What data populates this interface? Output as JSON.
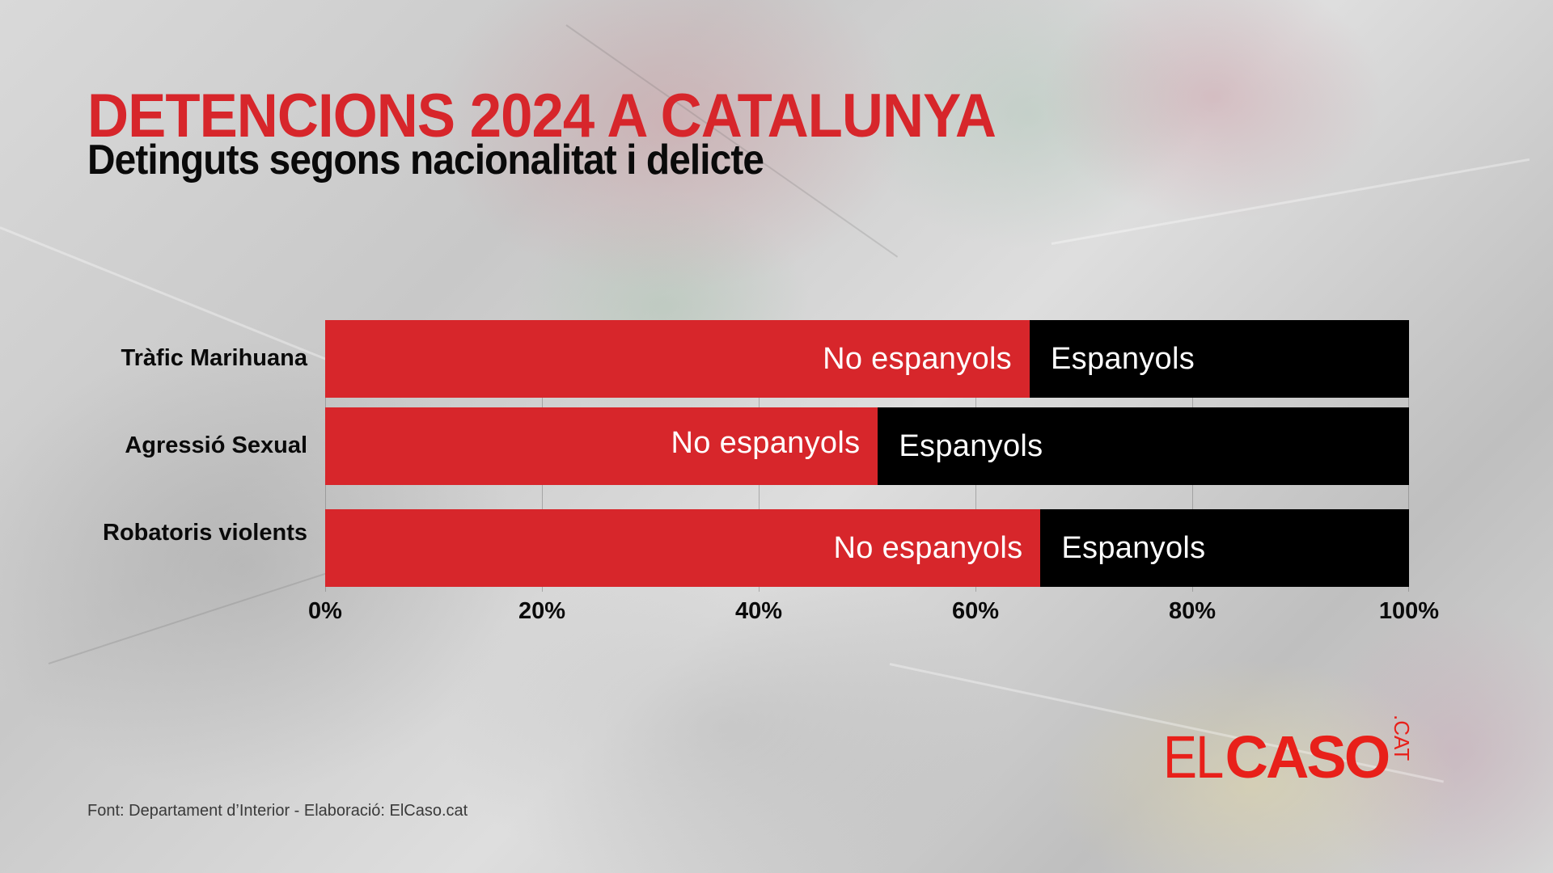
{
  "header": {
    "title": "DETENCIONS 2024 A CATALUNYA",
    "subtitle": "Detinguts segons nacionalitat i delicte"
  },
  "footer": {
    "source": "Font: Departament d’Interior - Elaboració: ElCaso.cat"
  },
  "logo": {
    "part1": "EL",
    "part2": "CASO",
    "part3": ".CAT"
  },
  "colors": {
    "accent_red": "#d7262b",
    "black": "#000000",
    "logo_red": "#e8201a"
  },
  "chart_data": {
    "type": "bar",
    "orientation": "horizontal",
    "stacked": "percent",
    "title": "DETENCIONS 2024 A CATALUNYA",
    "subtitle": "Detinguts segons nacionalitat i delicte",
    "categories": [
      "Tràfic Marihuana",
      "Agressió Sexual",
      "Robatoris violents"
    ],
    "series": [
      {
        "name": "No espanyols",
        "color": "#d7262b",
        "values": [
          65,
          51,
          66
        ]
      },
      {
        "name": "Espanyols",
        "color": "#000000",
        "values": [
          35,
          49,
          34
        ]
      }
    ],
    "xlabel": "",
    "ylabel": "",
    "xlim": [
      0,
      100
    ],
    "x_ticks": [
      "0%",
      "20%",
      "40%",
      "60%",
      "80%",
      "100%"
    ],
    "grid": true,
    "legend": "inline segment labels",
    "source": "Font: Departament d’Interior - Elaboració: ElCaso.cat"
  }
}
